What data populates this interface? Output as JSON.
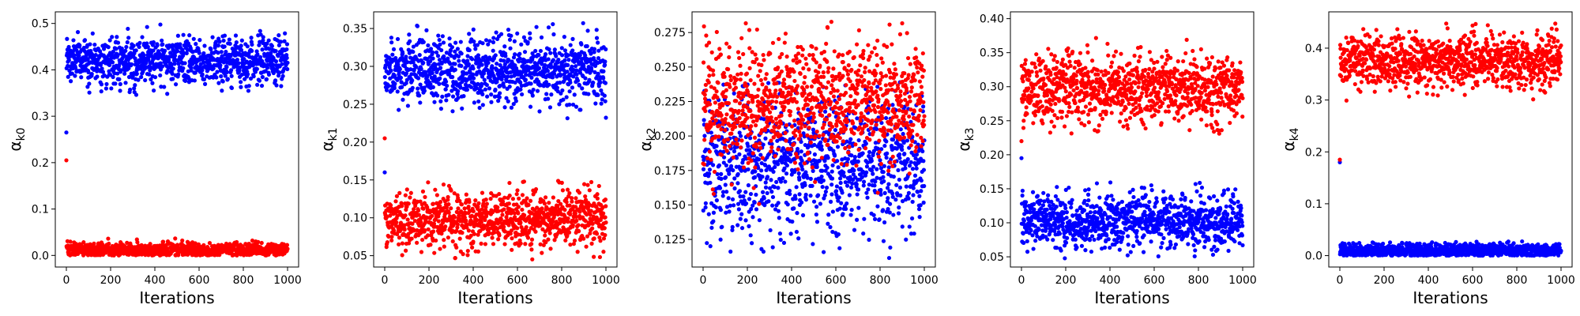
{
  "chart_data": [
    {
      "type": "scatter",
      "xlabel": "Iterations",
      "ylabel": {
        "base": "α",
        "sub": "k0"
      },
      "xlim": [
        -50,
        1050
      ],
      "ylim": [
        -0.025,
        0.525
      ],
      "x_ticks": [
        0,
        200,
        400,
        600,
        800,
        1000
      ],
      "x_tick_labels": [
        "0",
        "200",
        "400",
        "600",
        "800",
        "1000"
      ],
      "y_ticks": [
        0.0,
        0.1,
        0.2,
        0.3,
        0.4,
        0.5
      ],
      "y_tick_labels": [
        "0.0",
        "0.1",
        "0.2",
        "0.3",
        "0.4",
        "0.5"
      ],
      "grid": false,
      "legend": "none",
      "series": [
        {
          "color": "#0000ff",
          "start_value": 0.265,
          "center": 0.42,
          "spread": 0.025,
          "min": 0.345,
          "max": 0.505
        },
        {
          "color": "#ff0000",
          "start_value": 0.205,
          "center": 0.012,
          "spread": 0.007,
          "min": 0.0,
          "max": 0.04
        }
      ]
    },
    {
      "type": "scatter",
      "xlabel": "Iterations",
      "ylabel": {
        "base": "α",
        "sub": "k1"
      },
      "xlim": [
        -50,
        1050
      ],
      "ylim": [
        0.035,
        0.372
      ],
      "x_ticks": [
        0,
        200,
        400,
        600,
        800,
        1000
      ],
      "x_tick_labels": [
        "0",
        "200",
        "400",
        "600",
        "800",
        "1000"
      ],
      "y_ticks": [
        0.05,
        0.1,
        0.15,
        0.2,
        0.25,
        0.3,
        0.35
      ],
      "y_tick_labels": [
        "0.05",
        "0.10",
        "0.15",
        "0.20",
        "0.25",
        "0.30",
        "0.35"
      ],
      "grid": false,
      "legend": "none",
      "series": [
        {
          "color": "#0000ff",
          "start_value": 0.16,
          "center": 0.295,
          "spread": 0.022,
          "min": 0.215,
          "max": 0.358
        },
        {
          "color": "#ff0000",
          "start_value": 0.205,
          "center": 0.098,
          "spread": 0.018,
          "min": 0.045,
          "max": 0.15
        }
      ]
    },
    {
      "type": "scatter",
      "xlabel": "Iterations",
      "ylabel": {
        "base": "α",
        "sub": "k2"
      },
      "xlim": [
        -50,
        1050
      ],
      "ylim": [
        0.105,
        0.29
      ],
      "x_ticks": [
        0,
        200,
        400,
        600,
        800,
        1000
      ],
      "x_tick_labels": [
        "0",
        "200",
        "400",
        "600",
        "800",
        "1000"
      ],
      "y_ticks": [
        0.125,
        0.15,
        0.175,
        0.2,
        0.225,
        0.25,
        0.275
      ],
      "y_tick_labels": [
        "0.125",
        "0.150",
        "0.175",
        "0.200",
        "0.225",
        "0.250",
        "0.275"
      ],
      "grid": false,
      "legend": "none",
      "series": [
        {
          "color": "#0000ff",
          "start_value": 0.185,
          "center": 0.18,
          "spread": 0.025,
          "min": 0.11,
          "max": 0.24
        },
        {
          "color": "#ff0000",
          "start_value": 0.18,
          "center": 0.225,
          "spread": 0.022,
          "min": 0.15,
          "max": 0.286
        }
      ]
    },
    {
      "type": "scatter",
      "xlabel": "Iterations",
      "ylabel": {
        "base": "α",
        "sub": "k3"
      },
      "xlim": [
        -50,
        1050
      ],
      "ylim": [
        0.035,
        0.41
      ],
      "x_ticks": [
        0,
        200,
        400,
        600,
        800,
        1000
      ],
      "x_tick_labels": [
        "0",
        "200",
        "400",
        "600",
        "800",
        "1000"
      ],
      "y_ticks": [
        0.05,
        0.1,
        0.15,
        0.2,
        0.25,
        0.3,
        0.35,
        0.4
      ],
      "y_tick_labels": [
        "0.05",
        "0.10",
        "0.15",
        "0.20",
        "0.25",
        "0.30",
        "0.35",
        "0.40"
      ],
      "grid": false,
      "legend": "none",
      "series": [
        {
          "color": "#0000ff",
          "start_value": 0.195,
          "center": 0.103,
          "spread": 0.02,
          "min": 0.045,
          "max": 0.17
        },
        {
          "color": "#ff0000",
          "start_value": 0.22,
          "center": 0.297,
          "spread": 0.025,
          "min": 0.23,
          "max": 0.392
        }
      ]
    },
    {
      "type": "scatter",
      "xlabel": "Iterations",
      "ylabel": {
        "base": "α",
        "sub": "k4"
      },
      "xlim": [
        -50,
        1050
      ],
      "ylim": [
        -0.022,
        0.47
      ],
      "x_ticks": [
        0,
        200,
        400,
        600,
        800,
        1000
      ],
      "x_tick_labels": [
        "0",
        "200",
        "400",
        "600",
        "800",
        "1000"
      ],
      "y_ticks": [
        0.0,
        0.1,
        0.2,
        0.3,
        0.4
      ],
      "y_tick_labels": [
        "0.0",
        "0.1",
        "0.2",
        "0.3",
        "0.4"
      ],
      "grid": false,
      "legend": "none",
      "series": [
        {
          "color": "#0000ff",
          "start_value": 0.18,
          "center": 0.01,
          "spread": 0.007,
          "min": 0.0,
          "max": 0.035
        },
        {
          "color": "#ff0000",
          "start_value": 0.185,
          "center": 0.375,
          "spread": 0.025,
          "min": 0.295,
          "max": 0.45
        }
      ]
    }
  ]
}
